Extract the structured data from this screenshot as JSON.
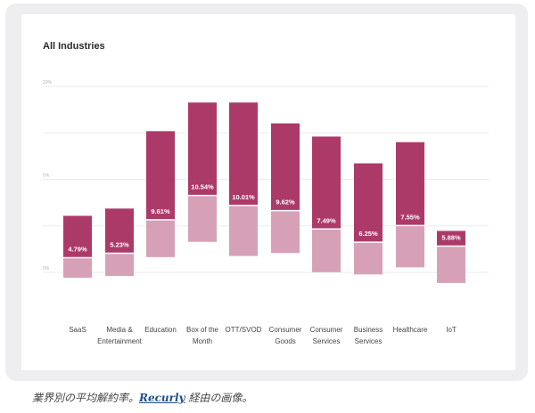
{
  "chart_data": {
    "type": "bar",
    "title": "All Industries",
    "y_tick_labels": [
      "10%",
      "5%",
      "0%"
    ],
    "ylim": [
      -1,
      10
    ],
    "grid": true,
    "categories": [
      "SaaS",
      "Media &\nEntertainment",
      "Education",
      "Box of the\nMonth",
      "OTT/SVOD",
      "Consumer\nGoods",
      "Consumer\nServices",
      "Business\nServices",
      "Healthcare",
      "IoT"
    ],
    "average_label": [
      "4.79%",
      "5.23%",
      "9.61%",
      "10.54%",
      "10.01%",
      "9.62%",
      "7.49%",
      "6.25%",
      "7.55%",
      "5.88%"
    ],
    "series": [
      {
        "name": "",
        "high": [
          3.04,
          3.43,
          7.59,
          9.13,
          9.13,
          8.01,
          7.3,
          5.86,
          7.0,
          2.23
        ],
        "mid": [
          0.79,
          1.03,
          2.83,
          4.13,
          3.6,
          3.32,
          2.33,
          1.62,
          2.52,
          1.41
        ],
        "low": [
          -0.29,
          -0.19,
          0.82,
          1.64,
          0.88,
          1.04,
          0.01,
          -0.11,
          0.27,
          -0.57
        ]
      }
    ],
    "colors": {
      "upper": "#ac3a69",
      "lower": "#d6a1b7",
      "divider": "#ffffff",
      "grid": "#ebebeb"
    }
  },
  "caption": {
    "before": "業界別の平均解約率。",
    "link": "Recurly",
    "after": " 経由の画像。"
  }
}
